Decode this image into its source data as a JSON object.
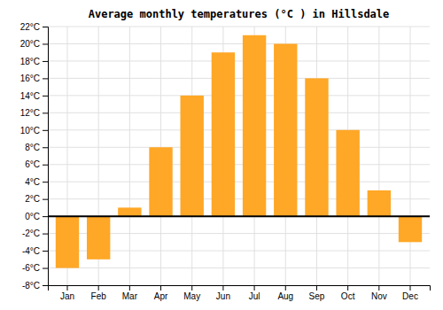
{
  "chart_data": {
    "type": "bar",
    "title": "Average monthly temperatures (°C ) in Hillsdale",
    "categories": [
      "Jan",
      "Feb",
      "Mar",
      "Apr",
      "May",
      "Jun",
      "Jul",
      "Aug",
      "Sep",
      "Oct",
      "Nov",
      "Dec"
    ],
    "values": [
      -6,
      -5,
      1,
      8,
      14,
      19,
      21,
      20,
      16,
      10,
      3,
      -3
    ],
    "color": "#FFA726",
    "ylim": [
      -8,
      22
    ],
    "yticks": [
      {
        "value": -8,
        "label": "-8°C"
      },
      {
        "value": -6,
        "label": "-6°C"
      },
      {
        "value": -4,
        "label": "-4°C"
      },
      {
        "value": -2,
        "label": "-2°C"
      },
      {
        "value": 0,
        "label": "0°C"
      },
      {
        "value": 2,
        "label": "2°C"
      },
      {
        "value": 4,
        "label": "4°C"
      },
      {
        "value": 6,
        "label": "6°C"
      },
      {
        "value": 8,
        "label": "8°C"
      },
      {
        "value": 10,
        "label": "10°C"
      },
      {
        "value": 12,
        "label": "12°C"
      },
      {
        "value": 14,
        "label": "14°C"
      },
      {
        "value": 16,
        "label": "16°C"
      },
      {
        "value": 18,
        "label": "18°C"
      },
      {
        "value": 20,
        "label": "20°C"
      },
      {
        "value": 22,
        "label": "22°C"
      }
    ],
    "grid": true
  }
}
